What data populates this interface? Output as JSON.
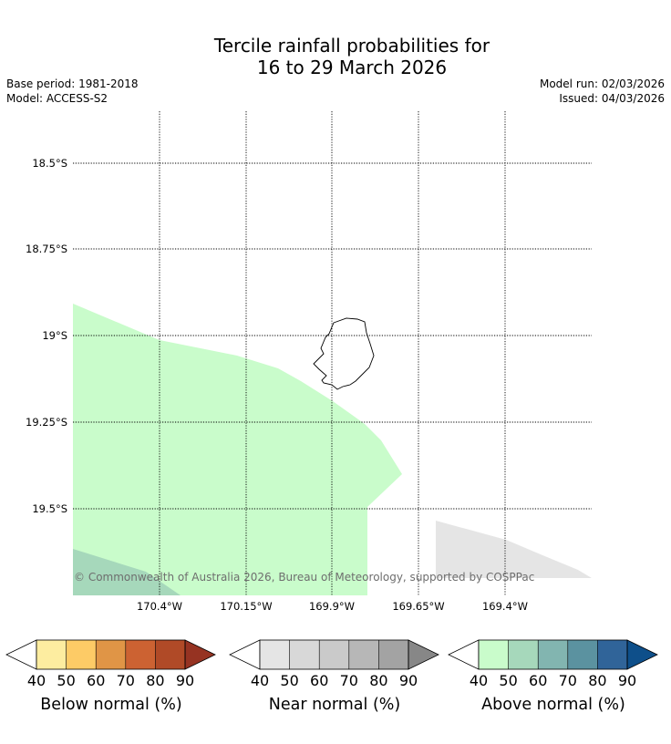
{
  "title_line1": "Tercile rainfall probabilities for",
  "title_line2": "16 to 29 March 2026",
  "base_period": "Base period: 1981-2018",
  "model": "Model: ACCESS-S2",
  "model_run": "Model run: 02/03/2026",
  "issued": "Issued: 04/03/2026",
  "map": {
    "lat_labels": [
      "18.5°S",
      "18.75°S",
      "19°S",
      "19.25°S",
      "19.5°S"
    ],
    "lon_labels": [
      "170.4°W",
      "170.15°W",
      "169.9°W",
      "169.65°W",
      "169.4°W"
    ],
    "copyright": "© Commonwealth of Australia 2026, Bureau of Meteorology, supported by COSPPac",
    "regions": [
      {
        "category": "Above normal",
        "level": "40-50"
      },
      {
        "category": "Above normal",
        "level": "50-60"
      },
      {
        "category": "Near normal",
        "level": "40-50"
      }
    ]
  },
  "legends": [
    {
      "title": "Below normal (%)",
      "ticks": [
        "40",
        "50",
        "60",
        "70",
        "80",
        "90"
      ],
      "colors": [
        "#fdeda0",
        "#fdcb66",
        "#e09546",
        "#cc6232",
        "#b04a27",
        "#963322"
      ]
    },
    {
      "title": "Near normal (%)",
      "ticks": [
        "40",
        "50",
        "60",
        "70",
        "80",
        "90"
      ],
      "colors": [
        "#e5e5e5",
        "#d8d8d8",
        "#cacaca",
        "#b7b7b7",
        "#a3a3a3",
        "#878787"
      ]
    },
    {
      "title": "Above normal (%)",
      "ticks": [
        "40",
        "50",
        "60",
        "70",
        "80",
        "90"
      ],
      "colors": [
        "#c9fccb",
        "#a6d8bb",
        "#82b5b0",
        "#5b92a0",
        "#306499",
        "#0e4f8a"
      ]
    }
  ]
}
